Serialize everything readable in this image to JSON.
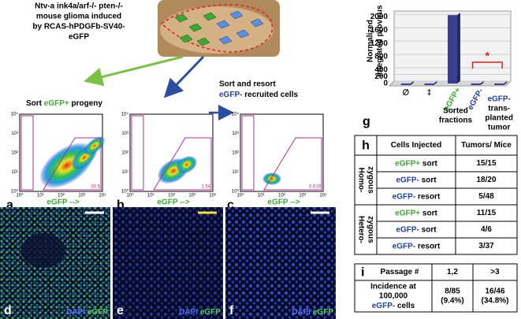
{
  "header": {
    "lines": [
      "Ntv-a ink4a/arf-/- pten-/-",
      "mouse glioma induced",
      "by RCAS-hPDGFb-SV40-",
      "eGFP"
    ]
  },
  "sort_a": {
    "prefix": "Sort",
    "marker": "eGFP+",
    "suffix": "progeny"
  },
  "sort_c": {
    "line1": "Sort and resort",
    "marker": "eGFP-",
    "suffix": "recruited cells"
  },
  "flow": {
    "axis_labels": [
      "10⁰",
      "10¹",
      "10²",
      "10³",
      "10⁴"
    ],
    "x_label": "eGFP -->",
    "panels": [
      {
        "letter": "a",
        "gate_value": "30.5"
      },
      {
        "letter": "b",
        "gate_value": "1.54"
      },
      {
        "letter": "c",
        "gate_value": "0.019"
      }
    ]
  },
  "images": [
    {
      "letter": "d",
      "dapi": "DAPI",
      "egfp": "eGFP"
    },
    {
      "letter": "e",
      "dapi": "DAPI",
      "egfp": "eGFP"
    },
    {
      "letter": "f",
      "dapi": "DAPI",
      "egfp": "eGFP"
    }
  ],
  "panel_g": {
    "type": "bar",
    "letter": "g",
    "y_label": [
      "Normalized",
      "integrated provirus"
    ],
    "categories": [
      "∅",
      "‡",
      "eGFP+",
      "eGFP-",
      "eGFP-"
    ],
    "values": [
      0,
      0,
      2050,
      0,
      0
    ],
    "color": "#3b3f8f",
    "group_label": [
      "Sorted",
      "fractions"
    ],
    "transplant_label": [
      "trans-",
      "planted",
      "tumor"
    ],
    "ylim": [
      0,
      2100
    ],
    "yticks": [
      0,
      200,
      400,
      800,
      1200,
      1600,
      2000
    ],
    "significance": "*"
  },
  "table_h": {
    "letter": "h",
    "header": [
      "Cells Injected",
      "Tumors/ Mice"
    ],
    "groups": [
      {
        "label": [
          "Homo-",
          "zygous"
        ],
        "rows": [
          {
            "marker": "eGFP+",
            "method": "sort",
            "result": "15/15"
          },
          {
            "marker": "eGFP-",
            "method": "sort",
            "result": "18/20"
          },
          {
            "marker": "eGFP-",
            "method": "resort",
            "result": "5/48"
          }
        ]
      },
      {
        "label": [
          "Hetero-",
          "zygous"
        ],
        "rows": [
          {
            "marker": "eGFP+",
            "method": "sort",
            "result": "11/15"
          },
          {
            "marker": "eGFP-",
            "method": "sort",
            "result": "4/6"
          },
          {
            "marker": "eGFP-",
            "method": "resort",
            "result": "3/37"
          }
        ]
      }
    ]
  },
  "table_i": {
    "letter": "i",
    "header": [
      "Passage #",
      "1,2",
      ">3"
    ],
    "row_label": [
      "Incidence at",
      "100,000"
    ],
    "row_marker": "eGFP-",
    "row_suffix": "cells",
    "cells": [
      [
        "8/85",
        "(9.4%)"
      ],
      [
        "16/46",
        "(34.8%)"
      ]
    ]
  }
}
